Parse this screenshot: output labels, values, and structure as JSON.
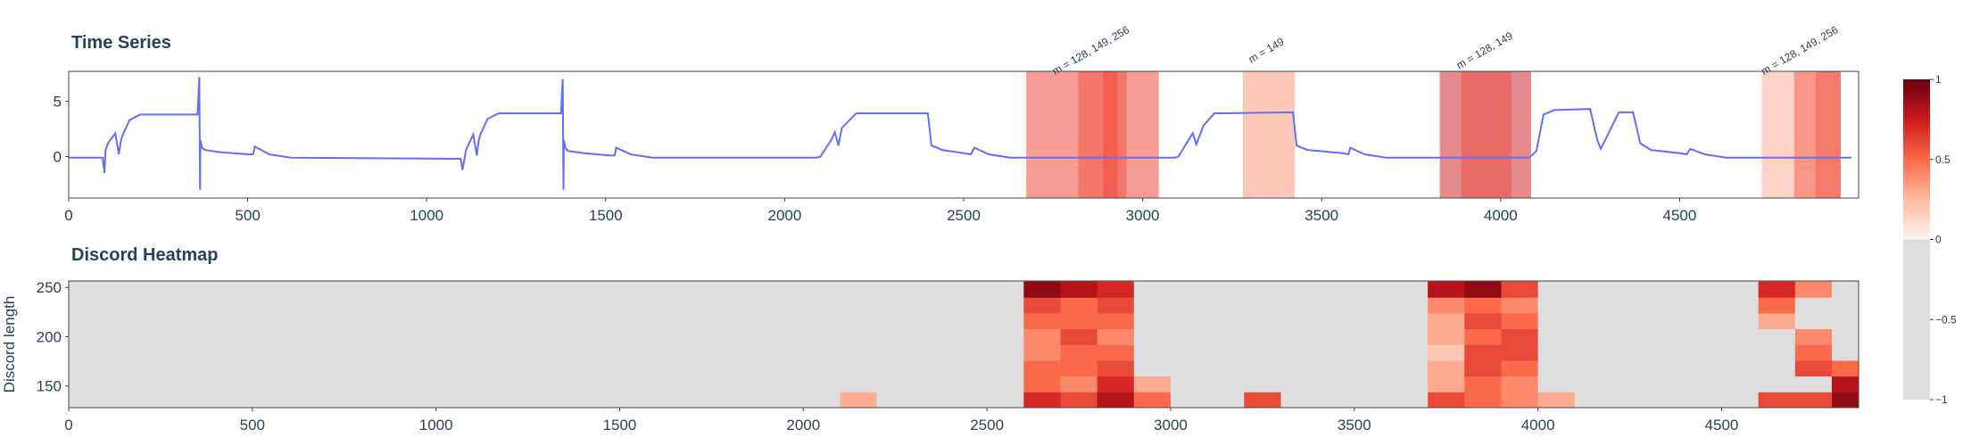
{
  "chart_data": [
    {
      "type": "line",
      "title": "Time Series",
      "color": "#636efa",
      "x": [
        0,
        95,
        100,
        103,
        110,
        130,
        140,
        145,
        150,
        170,
        200,
        360,
        365,
        367,
        368,
        372,
        380,
        420,
        500,
        515,
        520,
        560,
        620,
        1080,
        1095,
        1100,
        1110,
        1130,
        1140,
        1145,
        1150,
        1170,
        1200,
        1375,
        1380,
        1382,
        1383,
        1387,
        1395,
        1440,
        1510,
        1525,
        1530,
        1570,
        1630,
        2090,
        2100,
        2130,
        2140,
        2150,
        2160,
        2200,
        2400,
        2410,
        2440,
        2500,
        2520,
        2530,
        2570,
        2630,
        3090,
        3100,
        3130,
        3140,
        3150,
        3170,
        3200,
        3420,
        3430,
        3460,
        3560,
        3575,
        3580,
        3620,
        3680,
        4080,
        4100,
        4120,
        4150,
        4250,
        4270,
        4280,
        4300,
        4330,
        4370,
        4390,
        4420,
        4500,
        4520,
        4530,
        4570,
        4630,
        4980
      ],
      "values": [
        -0.1,
        -0.1,
        -1.5,
        0.6,
        1.2,
        2.1,
        0.2,
        1.3,
        1.9,
        3.3,
        3.8,
        3.8,
        7.2,
        -3.0,
        1.5,
        0.8,
        0.6,
        0.4,
        0.2,
        0.2,
        0.9,
        0.2,
        -0.1,
        -0.2,
        -0.2,
        -1.2,
        0.6,
        2.0,
        0.1,
        1.4,
        2.0,
        3.4,
        3.9,
        3.9,
        7.0,
        -3.0,
        1.5,
        0.8,
        0.5,
        0.3,
        0.1,
        0.1,
        0.8,
        0.2,
        -0.1,
        -0.1,
        0.0,
        1.5,
        2.2,
        1.0,
        2.6,
        3.9,
        3.9,
        1.0,
        0.6,
        0.3,
        0.2,
        0.8,
        0.2,
        -0.1,
        -0.1,
        0.0,
        1.6,
        2.1,
        1.1,
        2.8,
        3.9,
        4.0,
        1.0,
        0.6,
        0.3,
        0.2,
        0.8,
        0.2,
        -0.1,
        -0.1,
        0.5,
        3.8,
        4.2,
        4.3,
        1.5,
        0.7,
        2.0,
        4.0,
        4.0,
        1.2,
        0.6,
        0.3,
        0.2,
        0.7,
        0.2,
        -0.1,
        -0.1
      ],
      "xlim": [
        0,
        5000
      ],
      "xticks": [
        0,
        500,
        1000,
        1500,
        2000,
        2500,
        3000,
        3500,
        4000,
        4500
      ],
      "ylim": [
        -3.75,
        7.7
      ],
      "yticks": [
        0,
        5
      ],
      "shapes": [
        {
          "x0": 2675,
          "x1": 3045,
          "color": "rgba(239,59,44,0.5)"
        },
        {
          "x0": 2820,
          "x1": 2955,
          "color": "rgba(239,59,44,0.4)"
        },
        {
          "x0": 2890,
          "x1": 2930,
          "color": "rgba(239,59,44,0.4)"
        },
        {
          "x0": 3280,
          "x1": 3425,
          "color": "rgba(252,146,114,0.5)"
        },
        {
          "x0": 3830,
          "x1": 4085,
          "color": "rgba(203,24,29,0.5)"
        },
        {
          "x0": 3890,
          "x1": 4030,
          "color": "rgba(239,59,44,0.4)"
        },
        {
          "x0": 4730,
          "x1": 4950,
          "color": "rgba(252,146,114,0.4)"
        },
        {
          "x0": 4820,
          "x1": 4950,
          "color": "rgba(239,59,44,0.4)"
        },
        {
          "x0": 4880,
          "x1": 4950,
          "color": "rgba(239,59,44,0.3)"
        }
      ],
      "annotations": [
        {
          "x": 2860,
          "text": "m = 128, 149, 256"
        },
        {
          "x": 3350,
          "text": "m = 149"
        },
        {
          "x": 3960,
          "text": "m = 128, 149"
        },
        {
          "x": 4840,
          "text": "m = 128, 149, 256"
        }
      ]
    },
    {
      "type": "heatmap",
      "title": "Discord Heatmap",
      "y_label": "Discord length",
      "x": [
        50,
        150,
        250,
        350,
        450,
        550,
        650,
        750,
        850,
        950,
        1050,
        1150,
        1250,
        1350,
        1450,
        1550,
        1650,
        1750,
        1850,
        1950,
        2050,
        2150,
        2250,
        2350,
        2450,
        2550,
        2650,
        2750,
        2850,
        2950,
        3050,
        3150,
        3250,
        3350,
        3450,
        3550,
        3650,
        3750,
        3850,
        3950,
        4050,
        4150,
        4250,
        4350,
        4450,
        4550,
        4650,
        4750,
        4850
      ],
      "y": [
        136,
        152,
        168,
        184,
        200,
        216,
        232,
        248
      ],
      "z": [
        [
          -1,
          -1,
          -1,
          -1,
          -1,
          -1,
          -1,
          -1,
          -1,
          -1,
          -1,
          -1,
          -1,
          -1,
          -1,
          -1,
          -1,
          -1,
          -1,
          -1,
          -1,
          0.3,
          -1,
          -1,
          -1,
          -1,
          0.7,
          0.6,
          0.8,
          0.5,
          -1,
          -1,
          0.6,
          -1,
          -1,
          -1,
          -1,
          0.6,
          0.5,
          0.4,
          0.3,
          -1,
          -1,
          -1,
          -1,
          -1,
          0.6,
          0.6,
          0.9
        ],
        [
          -1,
          -1,
          -1,
          -1,
          -1,
          -1,
          -1,
          -1,
          -1,
          -1,
          -1,
          -1,
          -1,
          -1,
          -1,
          -1,
          -1,
          -1,
          -1,
          -1,
          -1,
          -1,
          -1,
          -1,
          -1,
          -1,
          0.5,
          0.4,
          0.7,
          0.3,
          -1,
          -1,
          -1,
          -1,
          -1,
          -1,
          -1,
          0.3,
          0.5,
          0.4,
          -1,
          -1,
          -1,
          -1,
          -1,
          -1,
          -1,
          -1,
          0.8
        ],
        [
          -1,
          -1,
          -1,
          -1,
          -1,
          -1,
          -1,
          -1,
          -1,
          -1,
          -1,
          -1,
          -1,
          -1,
          -1,
          -1,
          -1,
          -1,
          -1,
          -1,
          -1,
          -1,
          -1,
          -1,
          -1,
          -1,
          0.5,
          0.5,
          0.6,
          -1,
          -1,
          -1,
          -1,
          -1,
          -1,
          -1,
          -1,
          0.3,
          0.6,
          0.5,
          -1,
          -1,
          -1,
          -1,
          -1,
          -1,
          -1,
          0.6,
          0.5
        ],
        [
          -1,
          -1,
          -1,
          -1,
          -1,
          -1,
          -1,
          -1,
          -1,
          -1,
          -1,
          -1,
          -1,
          -1,
          -1,
          -1,
          -1,
          -1,
          -1,
          -1,
          -1,
          -1,
          -1,
          -1,
          -1,
          -1,
          0.4,
          0.5,
          0.5,
          -1,
          -1,
          -1,
          -1,
          -1,
          -1,
          -1,
          -1,
          0.2,
          0.6,
          0.6,
          -1,
          -1,
          -1,
          -1,
          -1,
          -1,
          -1,
          0.5,
          -1
        ],
        [
          -1,
          -1,
          -1,
          -1,
          -1,
          -1,
          -1,
          -1,
          -1,
          -1,
          -1,
          -1,
          -1,
          -1,
          -1,
          -1,
          -1,
          -1,
          -1,
          -1,
          -1,
          -1,
          -1,
          -1,
          -1,
          -1,
          0.4,
          0.6,
          0.4,
          -1,
          -1,
          -1,
          -1,
          -1,
          -1,
          -1,
          -1,
          0.3,
          0.5,
          0.6,
          -1,
          -1,
          -1,
          -1,
          -1,
          -1,
          -1,
          0.4,
          -1
        ],
        [
          -1,
          -1,
          -1,
          -1,
          -1,
          -1,
          -1,
          -1,
          -1,
          -1,
          -1,
          -1,
          -1,
          -1,
          -1,
          -1,
          -1,
          -1,
          -1,
          -1,
          -1,
          -1,
          -1,
          -1,
          -1,
          -1,
          0.5,
          0.5,
          0.5,
          -1,
          -1,
          -1,
          -1,
          -1,
          -1,
          -1,
          -1,
          0.3,
          0.6,
          0.5,
          -1,
          -1,
          -1,
          -1,
          -1,
          -1,
          0.3,
          -1,
          -1
        ],
        [
          -1,
          -1,
          -1,
          -1,
          -1,
          -1,
          -1,
          -1,
          -1,
          -1,
          -1,
          -1,
          -1,
          -1,
          -1,
          -1,
          -1,
          -1,
          -1,
          -1,
          -1,
          -1,
          -1,
          -1,
          -1,
          -1,
          0.6,
          0.5,
          0.6,
          -1,
          -1,
          -1,
          -1,
          -1,
          -1,
          -1,
          -1,
          0.4,
          0.5,
          0.4,
          -1,
          -1,
          -1,
          -1,
          -1,
          -1,
          0.5,
          -1,
          -1
        ],
        [
          -1,
          -1,
          -1,
          -1,
          -1,
          -1,
          -1,
          -1,
          -1,
          -1,
          -1,
          -1,
          -1,
          -1,
          -1,
          -1,
          -1,
          -1,
          -1,
          -1,
          -1,
          -1,
          -1,
          -1,
          -1,
          -1,
          0.9,
          0.8,
          0.7,
          -1,
          -1,
          -1,
          -1,
          -1,
          -1,
          -1,
          -1,
          0.8,
          0.9,
          0.6,
          -1,
          -1,
          -1,
          -1,
          -1,
          -1,
          0.7,
          0.4,
          -1
        ]
      ],
      "xlim": [
        0,
        4873
      ],
      "xticks": [
        0,
        500,
        1000,
        1500,
        2000,
        2500,
        3000,
        3500,
        4000,
        4500
      ],
      "ylim": [
        128,
        256.5
      ],
      "yticks": [
        150,
        200,
        250
      ],
      "zlim": [
        -1,
        1
      ],
      "colorscale": [
        [
          -1,
          "#dedede"
        ],
        [
          0,
          "#dedede"
        ],
        [
          0,
          "#fff5f0"
        ],
        [
          0.25,
          "#fcbba1"
        ],
        [
          0.5,
          "#fb6a4a"
        ],
        [
          0.75,
          "#cb181d"
        ],
        [
          1,
          "#67000d"
        ]
      ],
      "colorbar_ticks": [
        1,
        0.5,
        0,
        {
          "value": -0.5,
          "label": "−0.5"
        },
        {
          "value": -1,
          "label": "−1"
        }
      ]
    }
  ]
}
